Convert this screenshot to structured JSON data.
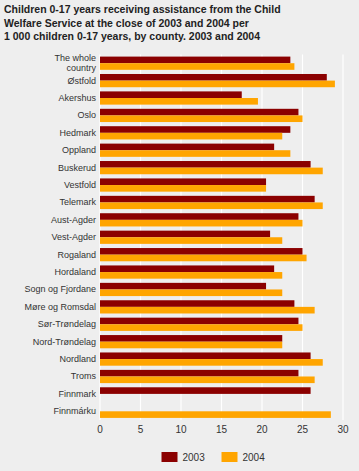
{
  "chart_data": {
    "type": "bar",
    "orientation": "horizontal",
    "title": "Children 0-17 years receiving assistance from the Child\nWelfare Service at the close of 2003 and 2004 per\n1 000 children 0-17 years, by county. 2003 and 2004",
    "categories": [
      "The whole\ncountry",
      "Østfold",
      "Akershus",
      "Oslo",
      "Hedmark",
      "Oppland",
      "Buskerud",
      "Vestfold",
      "Telemark",
      "Aust-Agder",
      "Vest-Agder",
      "Rogaland",
      "Hordaland",
      "Sogn og Fjordane",
      "Møre og Romsdal",
      "Sør-Trøndelag",
      "Nord-Trøndelag",
      "Nordland",
      "Troms",
      "Finnmark",
      "Finnmárku"
    ],
    "series": [
      {
        "name": "2003",
        "color": "#8B0000",
        "values": [
          23.5,
          28.0,
          17.5,
          24.5,
          23.5,
          21.5,
          26.0,
          20.5,
          26.5,
          24.5,
          21.0,
          25.0,
          21.5,
          20.5,
          24.0,
          24.5,
          22.5,
          26.0,
          24.5,
          26.0,
          0
        ]
      },
      {
        "name": "2004",
        "color": "#FFA500",
        "values": [
          24.0,
          29.0,
          19.5,
          25.0,
          22.5,
          23.5,
          27.5,
          20.5,
          27.5,
          25.0,
          22.5,
          25.5,
          22.5,
          22.5,
          26.5,
          25.0,
          22.5,
          27.5,
          26.5,
          0,
          28.5
        ]
      }
    ],
    "xlim": [
      0,
      30
    ],
    "xticks": [
      0,
      5,
      10,
      15,
      20,
      25,
      30
    ],
    "grid": true,
    "legend": "bottom"
  }
}
